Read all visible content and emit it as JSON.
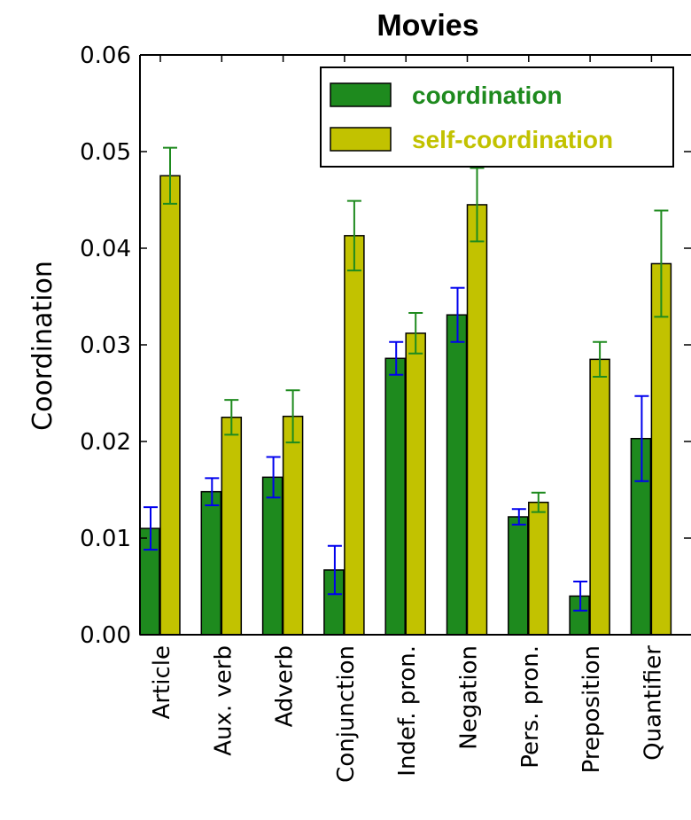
{
  "chart_data": {
    "type": "bar",
    "title": "Movies",
    "xlabel": "",
    "ylabel": "Coordination",
    "ylim": [
      0,
      0.06
    ],
    "yticks": [
      "0.00",
      "0.01",
      "0.02",
      "0.03",
      "0.04",
      "0.05",
      "0.06"
    ],
    "categories": [
      "Article",
      "Aux. verb",
      "Adverb",
      "Conjunction",
      "Indef. pron.",
      "Negation",
      "Pers. pron.",
      "Preposition",
      "Quantifier"
    ],
    "series": [
      {
        "name": "coordination",
        "color": "#1e8a1e",
        "error_color": "#0000ee",
        "values": [
          0.011,
          0.0148,
          0.0163,
          0.0067,
          0.0286,
          0.0331,
          0.0122,
          0.004,
          0.0203
        ],
        "errors": [
          0.0022,
          0.0014,
          0.0021,
          0.0025,
          0.0017,
          0.0028,
          0.0008,
          0.0015,
          0.0044
        ]
      },
      {
        "name": "self-coordination",
        "color": "#c2c200",
        "error_color": "#1e8a1e",
        "values": [
          0.0475,
          0.0225,
          0.0226,
          0.0413,
          0.0312,
          0.0445,
          0.0137,
          0.0285,
          0.0384
        ],
        "errors": [
          0.0029,
          0.0018,
          0.0027,
          0.0036,
          0.0021,
          0.0038,
          0.001,
          0.0018,
          0.0055
        ]
      }
    ],
    "legend_position": "top-right",
    "legend_text_colors": [
      "#1e8a1e",
      "#c2c200"
    ],
    "grid": false
  }
}
